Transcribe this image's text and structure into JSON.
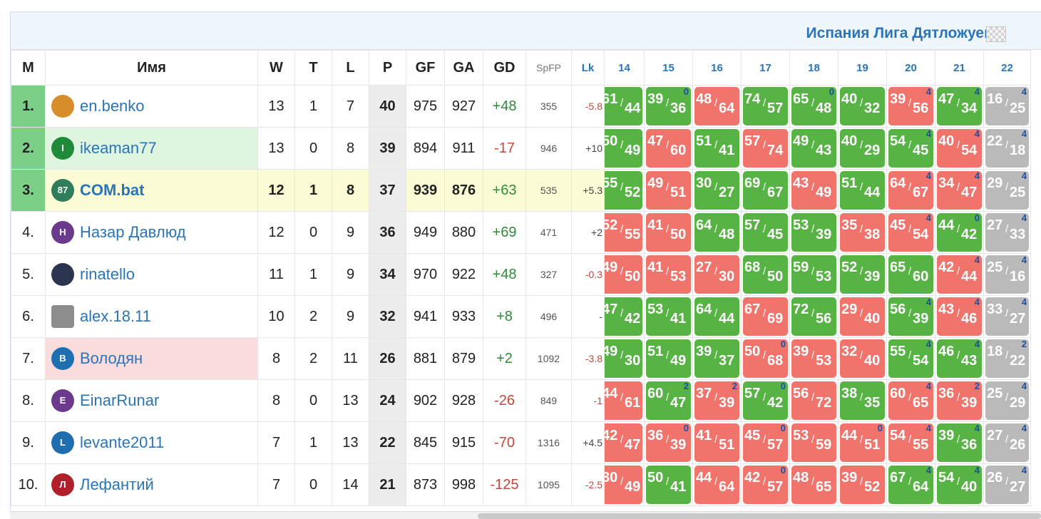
{
  "league": {
    "title": "Испания Лига Дятложуев"
  },
  "columns": {
    "pos": "M",
    "name": "Имя",
    "w": "W",
    "t": "T",
    "l": "L",
    "p": "P",
    "gf": "GF",
    "ga": "GA",
    "gd": "GD",
    "spfp": "SpFP",
    "lk": "Lk",
    "rounds": [
      "14",
      "15",
      "16",
      "17",
      "18",
      "19",
      "20",
      "21",
      "22"
    ]
  },
  "rows": [
    {
      "pos": "1.",
      "name": "en.benko",
      "avatar": {
        "icon": "horse-rider-icon",
        "letter": "",
        "color": "#d98c2a"
      },
      "highlight": "",
      "w": "13",
      "t": "1",
      "l": "7",
      "p": "40",
      "gf": "975",
      "ga": "927",
      "gd": "+48",
      "spfp": "355",
      "lk": "-5.8",
      "games": [
        {
          "f": "61",
          "a": "44",
          "r": "w",
          "c": ""
        },
        {
          "f": "39",
          "a": "36",
          "r": "w",
          "c": "0"
        },
        {
          "f": "48",
          "a": "64",
          "r": "l",
          "c": ""
        },
        {
          "f": "74",
          "a": "57",
          "r": "w",
          "c": ""
        },
        {
          "f": "65",
          "a": "48",
          "r": "w",
          "c": "0"
        },
        {
          "f": "40",
          "a": "32",
          "r": "w",
          "c": ""
        },
        {
          "f": "39",
          "a": "56",
          "r": "l",
          "c": "4"
        },
        {
          "f": "47",
          "a": "34",
          "r": "w",
          "c": "4"
        },
        {
          "f": "16",
          "a": "25",
          "r": "n",
          "c": "4"
        }
      ]
    },
    {
      "pos": "2.",
      "name": "ikeaman77",
      "avatar": {
        "icon": "letter-avatar-icon",
        "letter": "I",
        "color": "#1f8a3a"
      },
      "highlight": "green",
      "w": "13",
      "t": "0",
      "l": "8",
      "p": "39",
      "gf": "894",
      "ga": "911",
      "gd": "-17",
      "spfp": "946",
      "lk": "+10",
      "games": [
        {
          "f": "50",
          "a": "49",
          "r": "w",
          "c": ""
        },
        {
          "f": "47",
          "a": "60",
          "r": "l",
          "c": ""
        },
        {
          "f": "51",
          "a": "41",
          "r": "w",
          "c": ""
        },
        {
          "f": "57",
          "a": "74",
          "r": "l",
          "c": ""
        },
        {
          "f": "49",
          "a": "43",
          "r": "w",
          "c": ""
        },
        {
          "f": "40",
          "a": "29",
          "r": "w",
          "c": ""
        },
        {
          "f": "54",
          "a": "45",
          "r": "w",
          "c": "4"
        },
        {
          "f": "40",
          "a": "54",
          "r": "l",
          "c": "4"
        },
        {
          "f": "22",
          "a": "18",
          "r": "n",
          "c": "4"
        }
      ]
    },
    {
      "pos": "3.",
      "name": "COM.bat",
      "avatar": {
        "icon": "jersey-icon",
        "letter": "87",
        "color": "#2f7d5a"
      },
      "highlight": "yellow",
      "w": "12",
      "t": "1",
      "l": "8",
      "p": "37",
      "gf": "939",
      "ga": "876",
      "gd": "+63",
      "spfp": "535",
      "lk": "+5.3",
      "games": [
        {
          "f": "55",
          "a": "52",
          "r": "w",
          "c": ""
        },
        {
          "f": "49",
          "a": "51",
          "r": "l",
          "c": ""
        },
        {
          "f": "30",
          "a": "27",
          "r": "w",
          "c": ""
        },
        {
          "f": "69",
          "a": "67",
          "r": "w",
          "c": ""
        },
        {
          "f": "43",
          "a": "49",
          "r": "l",
          "c": ""
        },
        {
          "f": "51",
          "a": "44",
          "r": "w",
          "c": ""
        },
        {
          "f": "64",
          "a": "67",
          "r": "l",
          "c": "4"
        },
        {
          "f": "34",
          "a": "47",
          "r": "l",
          "c": "4"
        },
        {
          "f": "29",
          "a": "25",
          "r": "n",
          "c": "4"
        }
      ]
    },
    {
      "pos": "4.",
      "name": "Назар Давлюд",
      "avatar": {
        "icon": "letter-avatar-icon",
        "letter": "Н",
        "color": "#6b3a8c"
      },
      "highlight": "",
      "w": "12",
      "t": "0",
      "l": "9",
      "p": "36",
      "gf": "949",
      "ga": "880",
      "gd": "+69",
      "spfp": "471",
      "lk": "+2",
      "games": [
        {
          "f": "52",
          "a": "55",
          "r": "l",
          "c": ""
        },
        {
          "f": "41",
          "a": "50",
          "r": "l",
          "c": ""
        },
        {
          "f": "64",
          "a": "48",
          "r": "w",
          "c": ""
        },
        {
          "f": "57",
          "a": "45",
          "r": "w",
          "c": ""
        },
        {
          "f": "53",
          "a": "39",
          "r": "w",
          "c": ""
        },
        {
          "f": "35",
          "a": "38",
          "r": "l",
          "c": ""
        },
        {
          "f": "45",
          "a": "54",
          "r": "l",
          "c": "4"
        },
        {
          "f": "44",
          "a": "42",
          "r": "w",
          "c": "0"
        },
        {
          "f": "27",
          "a": "33",
          "r": "n",
          "c": "4"
        }
      ]
    },
    {
      "pos": "5.",
      "name": "rinatello",
      "avatar": {
        "icon": "player-photo-icon",
        "letter": "",
        "color": "#2b3550"
      },
      "highlight": "",
      "w": "11",
      "t": "1",
      "l": "9",
      "p": "34",
      "gf": "970",
      "ga": "922",
      "gd": "+48",
      "spfp": "327",
      "lk": "-0.3",
      "games": [
        {
          "f": "49",
          "a": "50",
          "r": "l",
          "c": ""
        },
        {
          "f": "41",
          "a": "53",
          "r": "l",
          "c": ""
        },
        {
          "f": "27",
          "a": "30",
          "r": "l",
          "c": ""
        },
        {
          "f": "68",
          "a": "50",
          "r": "w",
          "c": ""
        },
        {
          "f": "59",
          "a": "53",
          "r": "w",
          "c": ""
        },
        {
          "f": "52",
          "a": "39",
          "r": "w",
          "c": ""
        },
        {
          "f": "65",
          "a": "60",
          "r": "w",
          "c": ""
        },
        {
          "f": "42",
          "a": "44",
          "r": "l",
          "c": "4"
        },
        {
          "f": "25",
          "a": "16",
          "r": "n",
          "c": "4"
        }
      ]
    },
    {
      "pos": "6.",
      "name": "alex.18.11",
      "avatar": {
        "icon": "club-crest-icon",
        "letter": "",
        "color": "#8c8c8c"
      },
      "highlight": "",
      "w": "10",
      "t": "2",
      "l": "9",
      "p": "32",
      "gf": "941",
      "ga": "933",
      "gd": "+8",
      "spfp": "496",
      "lk": "-",
      "games": [
        {
          "f": "47",
          "a": "42",
          "r": "w",
          "c": ""
        },
        {
          "f": "53",
          "a": "41",
          "r": "w",
          "c": ""
        },
        {
          "f": "64",
          "a": "44",
          "r": "w",
          "c": ""
        },
        {
          "f": "67",
          "a": "69",
          "r": "l",
          "c": ""
        },
        {
          "f": "72",
          "a": "56",
          "r": "w",
          "c": ""
        },
        {
          "f": "29",
          "a": "40",
          "r": "l",
          "c": ""
        },
        {
          "f": "56",
          "a": "39",
          "r": "w",
          "c": "4"
        },
        {
          "f": "43",
          "a": "46",
          "r": "l",
          "c": "4"
        },
        {
          "f": "33",
          "a": "27",
          "r": "n",
          "c": "4"
        }
      ]
    },
    {
      "pos": "7.",
      "name": "Володян",
      "avatar": {
        "icon": "letter-avatar-icon",
        "letter": "В",
        "color": "#1f6fb0"
      },
      "highlight": "pink",
      "w": "8",
      "t": "2",
      "l": "11",
      "p": "26",
      "gf": "881",
      "ga": "879",
      "gd": "+2",
      "spfp": "1092",
      "lk": "-3.8",
      "games": [
        {
          "f": "49",
          "a": "30",
          "r": "w",
          "c": ""
        },
        {
          "f": "51",
          "a": "49",
          "r": "w",
          "c": ""
        },
        {
          "f": "39",
          "a": "37",
          "r": "w",
          "c": ""
        },
        {
          "f": "50",
          "a": "68",
          "r": "l",
          "c": "0"
        },
        {
          "f": "39",
          "a": "53",
          "r": "l",
          "c": ""
        },
        {
          "f": "32",
          "a": "40",
          "r": "l",
          "c": ""
        },
        {
          "f": "55",
          "a": "54",
          "r": "w",
          "c": "4"
        },
        {
          "f": "46",
          "a": "43",
          "r": "w",
          "c": "4"
        },
        {
          "f": "18",
          "a": "22",
          "r": "n",
          "c": "2"
        }
      ]
    },
    {
      "pos": "8.",
      "name": "EinarRunar",
      "avatar": {
        "icon": "letter-avatar-icon",
        "letter": "E",
        "color": "#6b3a8c"
      },
      "highlight": "",
      "w": "8",
      "t": "0",
      "l": "13",
      "p": "24",
      "gf": "902",
      "ga": "928",
      "gd": "-26",
      "spfp": "849",
      "lk": "-1",
      "games": [
        {
          "f": "44",
          "a": "61",
          "r": "l",
          "c": ""
        },
        {
          "f": "60",
          "a": "47",
          "r": "w",
          "c": "2"
        },
        {
          "f": "37",
          "a": "39",
          "r": "l",
          "c": "2"
        },
        {
          "f": "57",
          "a": "42",
          "r": "w",
          "c": "0"
        },
        {
          "f": "56",
          "a": "72",
          "r": "l",
          "c": ""
        },
        {
          "f": "38",
          "a": "35",
          "r": "w",
          "c": ""
        },
        {
          "f": "60",
          "a": "65",
          "r": "l",
          "c": "4"
        },
        {
          "f": "36",
          "a": "39",
          "r": "l",
          "c": "2"
        },
        {
          "f": "25",
          "a": "29",
          "r": "n",
          "c": "4"
        }
      ]
    },
    {
      "pos": "9.",
      "name": "levante2011",
      "avatar": {
        "icon": "letter-avatar-icon",
        "letter": "L",
        "color": "#1f6fb0"
      },
      "highlight": "",
      "w": "7",
      "t": "1",
      "l": "13",
      "p": "22",
      "gf": "845",
      "ga": "915",
      "gd": "-70",
      "spfp": "1316",
      "lk": "+4.5",
      "games": [
        {
          "f": "42",
          "a": "47",
          "r": "l",
          "c": ""
        },
        {
          "f": "36",
          "a": "39",
          "r": "l",
          "c": "0"
        },
        {
          "f": "41",
          "a": "51",
          "r": "l",
          "c": ""
        },
        {
          "f": "45",
          "a": "57",
          "r": "l",
          "c": "0"
        },
        {
          "f": "53",
          "a": "59",
          "r": "l",
          "c": ""
        },
        {
          "f": "44",
          "a": "51",
          "r": "l",
          "c": "0"
        },
        {
          "f": "54",
          "a": "55",
          "r": "l",
          "c": "4"
        },
        {
          "f": "39",
          "a": "36",
          "r": "w",
          "c": "4"
        },
        {
          "f": "27",
          "a": "26",
          "r": "n",
          "c": "4"
        }
      ]
    },
    {
      "pos": "10.",
      "name": "Лефантий",
      "avatar": {
        "icon": "letter-avatar-icon",
        "letter": "Л",
        "color": "#b01f2a"
      },
      "highlight": "",
      "w": "7",
      "t": "0",
      "l": "14",
      "p": "21",
      "gf": "873",
      "ga": "998",
      "gd": "-125",
      "spfp": "1095",
      "lk": "-2.5",
      "games": [
        {
          "f": "30",
          "a": "49",
          "r": "l",
          "c": ""
        },
        {
          "f": "50",
          "a": "41",
          "r": "w",
          "c": ""
        },
        {
          "f": "44",
          "a": "64",
          "r": "l",
          "c": ""
        },
        {
          "f": "42",
          "a": "57",
          "r": "l",
          "c": "0"
        },
        {
          "f": "48",
          "a": "65",
          "r": "l",
          "c": ""
        },
        {
          "f": "39",
          "a": "52",
          "r": "l",
          "c": ""
        },
        {
          "f": "67",
          "a": "64",
          "r": "w",
          "c": "4"
        },
        {
          "f": "54",
          "a": "40",
          "r": "w",
          "c": "4"
        },
        {
          "f": "26",
          "a": "27",
          "r": "n",
          "c": "4"
        }
      ]
    }
  ],
  "colors": {
    "win": "#56b344",
    "loss": "#f0736c",
    "neutral": "#b9b9b9",
    "link": "#2a74b8",
    "leader": "#7ccf86"
  }
}
